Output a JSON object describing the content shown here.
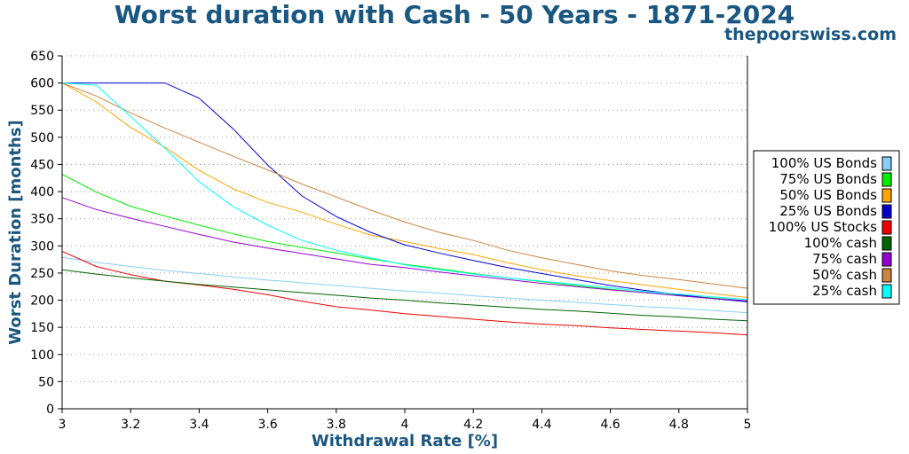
{
  "watermark": "thepoorswiss.com",
  "chart_data": {
    "type": "line",
    "title": "Worst duration with Cash - 50 Years - 1871-2024",
    "xlabel": "Withdrawal Rate [%]",
    "ylabel": "Worst Duration [months]",
    "xlim": [
      3,
      5
    ],
    "ylim": [
      0,
      650
    ],
    "xticks": [
      3,
      3.2,
      3.4,
      3.6,
      3.8,
      4,
      4.2,
      4.4,
      4.6,
      4.8,
      5
    ],
    "xtick_labels": [
      "3",
      "3.2",
      "3.4",
      "3.6",
      "3.8",
      "4",
      "4.2",
      "4.4",
      "4.6",
      "4.8",
      "5"
    ],
    "yticks": [
      0,
      50,
      100,
      150,
      200,
      250,
      300,
      350,
      400,
      450,
      500,
      550,
      600,
      650
    ],
    "grid": "horizontal-dotted",
    "legend_position": "right",
    "x": [
      3,
      3.1,
      3.2,
      3.3,
      3.4,
      3.5,
      3.6,
      3.7,
      3.8,
      3.9,
      4,
      4.1,
      4.2,
      4.3,
      4.4,
      4.5,
      4.6,
      4.7,
      4.8,
      4.9,
      5
    ],
    "series": [
      {
        "name": "100% US Bonds",
        "color": "#87cefa",
        "values": [
          279,
          270,
          262,
          255,
          249,
          243,
          237,
          232,
          227,
          222,
          217,
          213,
          208,
          204,
          200,
          196,
          192,
          188,
          185,
          181,
          177
        ]
      },
      {
        "name": "75% US Bonds",
        "color": "#00ee00",
        "values": [
          432,
          399,
          373,
          355,
          338,
          322,
          308,
          297,
          287,
          276,
          266,
          258,
          249,
          241,
          234,
          227,
          220,
          214,
          209,
          204,
          199
        ]
      },
      {
        "name": "50% US Bonds",
        "color": "#ffa500",
        "values": [
          600,
          565,
          518,
          482,
          439,
          405,
          380,
          362,
          340,
          320,
          308,
          295,
          284,
          269,
          256,
          245,
          236,
          228,
          220,
          212,
          205
        ]
      },
      {
        "name": "25% US Bonds",
        "color": "#0000cd",
        "values": [
          600,
          600,
          600,
          600,
          572,
          515,
          449,
          392,
          354,
          325,
          302,
          287,
          273,
          260,
          249,
          238,
          227,
          218,
          210,
          203,
          197
        ]
      },
      {
        "name": "100% US Stocks",
        "color": "#ee0000",
        "values": [
          290,
          262,
          247,
          235,
          228,
          220,
          210,
          198,
          188,
          182,
          175,
          170,
          165,
          160,
          156,
          153,
          149,
          146,
          143,
          140,
          136
        ]
      },
      {
        "name": "100% cash",
        "color": "#006400",
        "values": [
          256,
          248,
          241,
          235,
          229,
          224,
          219,
          214,
          209,
          204,
          200,
          195,
          191,
          187,
          183,
          180,
          176,
          172,
          169,
          165,
          162
        ]
      },
      {
        "name": "75% cash",
        "color": "#9400d3",
        "values": [
          389,
          367,
          351,
          336,
          321,
          307,
          296,
          286,
          276,
          266,
          260,
          252,
          245,
          238,
          231,
          225,
          219,
          214,
          208,
          203,
          199
        ]
      },
      {
        "name": "50% cash",
        "color": "#cd853f",
        "values": [
          600,
          576,
          545,
          517,
          491,
          465,
          440,
          414,
          390,
          366,
          344,
          325,
          310,
          292,
          278,
          266,
          254,
          245,
          238,
          230,
          222
        ]
      },
      {
        "name": "25% cash",
        "color": "#00ffff",
        "values": [
          600,
          596,
          538,
          480,
          418,
          372,
          338,
          310,
          292,
          278,
          265,
          256,
          248,
          241,
          235,
          229,
          223,
          216,
          211,
          206,
          201
        ]
      }
    ]
  }
}
